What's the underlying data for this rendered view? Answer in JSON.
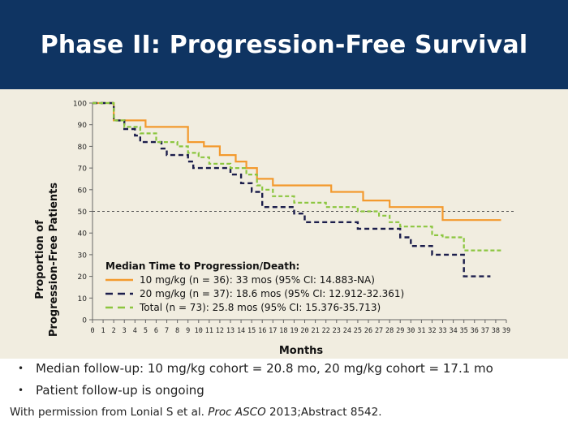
{
  "slide": {
    "title": "Phase II: Progression-Free Survival",
    "colors": {
      "header_bg": "#0f3462",
      "chart_bg": "#f1ede0"
    }
  },
  "bullets": [
    "Median follow-up: 10 mg/kg cohort = 20.8 mo, 20 mg/kg cohort = 17.1 mo",
    "Patient follow-up is ongoing"
  ],
  "source": {
    "prefix": "With permission from Lonial S et al. ",
    "journal": "Proc ASCO",
    "suffix": " 2013;Abstract 8542."
  },
  "chart_data": {
    "type": "line",
    "subtype": "kaplan-meier step",
    "xlabel": "Months",
    "ylabel_lines": [
      "Proportion of",
      "Progression-Free Patients"
    ],
    "xlim": [
      0,
      39
    ],
    "ylim": [
      0,
      100
    ],
    "xticks": [
      0,
      1,
      2,
      3,
      4,
      5,
      6,
      7,
      8,
      9,
      10,
      11,
      12,
      13,
      14,
      15,
      16,
      17,
      18,
      19,
      20,
      21,
      22,
      23,
      24,
      25,
      26,
      27,
      28,
      29,
      30,
      31,
      32,
      33,
      34,
      35,
      36,
      37,
      38,
      39
    ],
    "yticks": [
      0,
      10,
      20,
      30,
      40,
      50,
      60,
      70,
      80,
      90,
      100
    ],
    "grid": false,
    "reference_line": {
      "y": 50,
      "style": "dashed",
      "color": "#555555"
    },
    "legend": {
      "title": "Median Time to Progression/Death:",
      "placement": "bottom-left"
    },
    "series": [
      {
        "name": "10 mg/kg (n = 36): 33 mos (95% CI: 14.883-NA)",
        "color": "#f39a2e",
        "dash": "solid",
        "points": [
          [
            0,
            100
          ],
          [
            2,
            100
          ],
          [
            2,
            92
          ],
          [
            5,
            92
          ],
          [
            5,
            89
          ],
          [
            9,
            89
          ],
          [
            9,
            82
          ],
          [
            10.5,
            82
          ],
          [
            10.5,
            80
          ],
          [
            12,
            80
          ],
          [
            12,
            76
          ],
          [
            13.5,
            76
          ],
          [
            13.5,
            73
          ],
          [
            14.5,
            73
          ],
          [
            14.5,
            70
          ],
          [
            15.5,
            70
          ],
          [
            15.5,
            65
          ],
          [
            17,
            65
          ],
          [
            17,
            62
          ],
          [
            22.5,
            62
          ],
          [
            22.5,
            59
          ],
          [
            25.5,
            59
          ],
          [
            25.5,
            55
          ],
          [
            28,
            55
          ],
          [
            28,
            52
          ],
          [
            33,
            52
          ],
          [
            33,
            46
          ],
          [
            38.5,
            46
          ]
        ]
      },
      {
        "name": "20 mg/kg (n = 37): 18.6 mos (95% CI: 12.912-32.361)",
        "color": "#1c1e4c",
        "dash": "dashed",
        "points": [
          [
            0,
            100
          ],
          [
            2,
            100
          ],
          [
            2,
            92
          ],
          [
            3,
            92
          ],
          [
            3,
            88
          ],
          [
            4,
            88
          ],
          [
            4,
            85
          ],
          [
            4.5,
            85
          ],
          [
            4.5,
            82
          ],
          [
            6.5,
            82
          ],
          [
            6.5,
            79
          ],
          [
            7,
            79
          ],
          [
            7,
            76
          ],
          [
            9,
            76
          ],
          [
            9,
            73
          ],
          [
            9.5,
            73
          ],
          [
            9.5,
            70
          ],
          [
            13,
            70
          ],
          [
            13,
            67
          ],
          [
            14,
            67
          ],
          [
            14,
            63
          ],
          [
            15,
            63
          ],
          [
            15,
            59
          ],
          [
            16,
            59
          ],
          [
            16,
            52
          ],
          [
            19,
            52
          ],
          [
            19,
            49
          ],
          [
            20,
            49
          ],
          [
            20,
            45
          ],
          [
            25,
            45
          ],
          [
            25,
            42
          ],
          [
            29,
            42
          ],
          [
            29,
            38
          ],
          [
            30,
            38
          ],
          [
            30,
            34
          ],
          [
            32,
            34
          ],
          [
            32,
            30
          ],
          [
            35,
            30
          ],
          [
            35,
            20
          ],
          [
            37.5,
            20
          ]
        ]
      },
      {
        "name": "Total (n = 73): 25.8 mos (95% CI: 15.376-35.713)",
        "color": "#8cc63f",
        "dash": "dashed",
        "points": [
          [
            0,
            100
          ],
          [
            2,
            100
          ],
          [
            2,
            92
          ],
          [
            3,
            92
          ],
          [
            3,
            89
          ],
          [
            4.5,
            89
          ],
          [
            4.5,
            86
          ],
          [
            6,
            86
          ],
          [
            6,
            82
          ],
          [
            8,
            82
          ],
          [
            8,
            80
          ],
          [
            9,
            80
          ],
          [
            9,
            77
          ],
          [
            10,
            77
          ],
          [
            10,
            75
          ],
          [
            11,
            75
          ],
          [
            11,
            72
          ],
          [
            13,
            72
          ],
          [
            13,
            70
          ],
          [
            14.5,
            70
          ],
          [
            14.5,
            67
          ],
          [
            15.5,
            67
          ],
          [
            15.5,
            62
          ],
          [
            16,
            62
          ],
          [
            16,
            60
          ],
          [
            17,
            60
          ],
          [
            17,
            57
          ],
          [
            19,
            57
          ],
          [
            19,
            54
          ],
          [
            22,
            54
          ],
          [
            22,
            52
          ],
          [
            25,
            52
          ],
          [
            25,
            50
          ],
          [
            27,
            50
          ],
          [
            27,
            48
          ],
          [
            28,
            48
          ],
          [
            28,
            45
          ],
          [
            29,
            45
          ],
          [
            29,
            43
          ],
          [
            32,
            43
          ],
          [
            32,
            39
          ],
          [
            33,
            39
          ],
          [
            33,
            38
          ],
          [
            35,
            38
          ],
          [
            35,
            32
          ],
          [
            38.5,
            32
          ]
        ]
      }
    ]
  }
}
